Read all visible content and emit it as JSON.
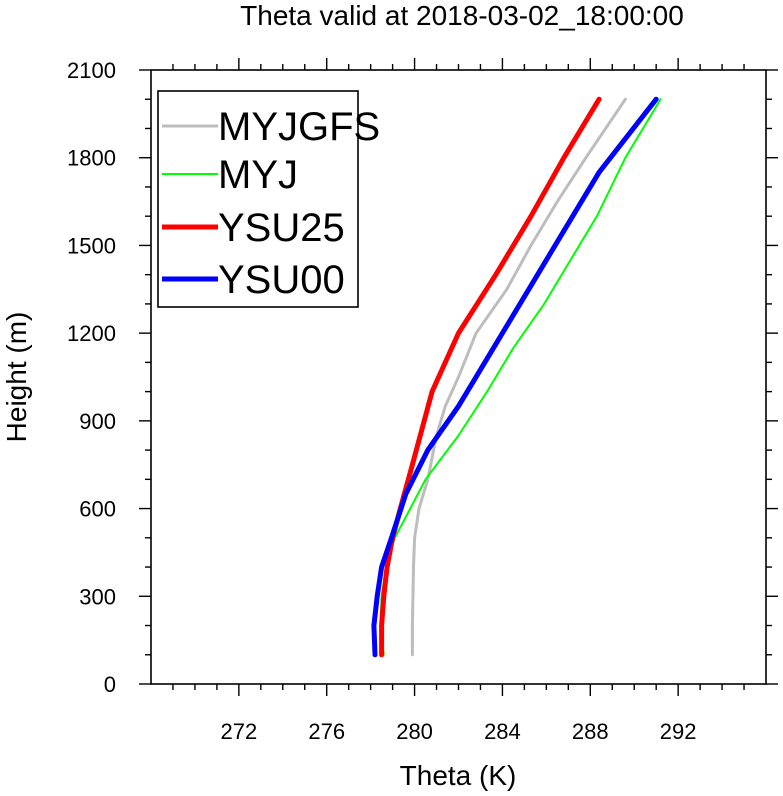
{
  "chart_data": {
    "type": "line",
    "title": "Theta valid at 2018-03-02_18:00:00",
    "xlabel": "Theta (K)",
    "ylabel": "Height (m)",
    "xlim": [
      268,
      296
    ],
    "ylim": [
      0,
      2100
    ],
    "xticks": [
      272,
      276,
      280,
      284,
      288,
      292
    ],
    "xtick_labels": [
      "272",
      "276",
      "280",
      "284",
      "288",
      "292"
    ],
    "yticks": [
      0,
      300,
      600,
      900,
      1200,
      1500,
      1800,
      2100
    ],
    "ytick_labels": [
      "0",
      "300",
      "600",
      "900",
      "1200",
      "1500",
      "1800",
      "2100"
    ],
    "grid": false,
    "legend_position": "top-left",
    "series": [
      {
        "name": "MYJGFS",
        "color": "#bdbdbd",
        "points": [
          [
            279.9,
            100
          ],
          [
            279.9,
            200
          ],
          [
            279.95,
            400
          ],
          [
            280.0,
            500
          ],
          [
            280.2,
            600
          ],
          [
            280.6,
            700
          ],
          [
            281.0,
            850
          ],
          [
            281.4,
            950
          ],
          [
            282.0,
            1050
          ],
          [
            282.8,
            1200
          ],
          [
            284.2,
            1350
          ],
          [
            285.3,
            1500
          ],
          [
            286.5,
            1650
          ],
          [
            287.8,
            1800
          ],
          [
            289.6,
            2000
          ]
        ]
      },
      {
        "name": "MYJ",
        "color": "#00ff00",
        "points": [
          [
            278.6,
            100
          ],
          [
            278.45,
            200
          ],
          [
            278.5,
            300
          ],
          [
            278.7,
            400
          ],
          [
            279.1,
            500
          ],
          [
            279.8,
            600
          ],
          [
            280.5,
            700
          ],
          [
            282.0,
            850
          ],
          [
            283.3,
            1000
          ],
          [
            284.5,
            1150
          ],
          [
            285.9,
            1300
          ],
          [
            287.1,
            1450
          ],
          [
            288.3,
            1600
          ],
          [
            289.6,
            1800
          ],
          [
            291.2,
            2000
          ]
        ]
      },
      {
        "name": "YSU25",
        "color": "#ff0000",
        "points": [
          [
            278.5,
            100
          ],
          [
            278.5,
            200
          ],
          [
            278.6,
            300
          ],
          [
            278.75,
            400
          ],
          [
            279.0,
            500
          ],
          [
            279.35,
            600
          ],
          [
            279.9,
            750
          ],
          [
            280.8,
            1000
          ],
          [
            282.0,
            1200
          ],
          [
            283.7,
            1400
          ],
          [
            285.3,
            1600
          ],
          [
            286.8,
            1800
          ],
          [
            288.4,
            2000
          ]
        ]
      },
      {
        "name": "YSU00",
        "color": "#0000ff",
        "points": [
          [
            278.2,
            100
          ],
          [
            278.15,
            200
          ],
          [
            278.3,
            300
          ],
          [
            278.5,
            400
          ],
          [
            278.95,
            500
          ],
          [
            279.6,
            650
          ],
          [
            280.6,
            800
          ],
          [
            282.0,
            950
          ],
          [
            283.6,
            1150
          ],
          [
            285.2,
            1350
          ],
          [
            286.8,
            1550
          ],
          [
            288.4,
            1750
          ],
          [
            291.0,
            2000
          ]
        ]
      }
    ]
  }
}
